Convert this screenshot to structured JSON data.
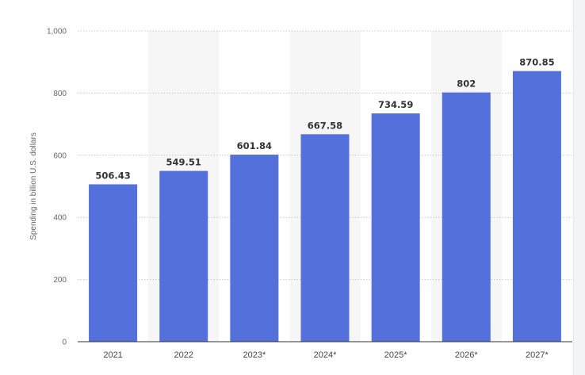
{
  "chart_data": {
    "type": "bar",
    "categories": [
      "2021",
      "2022",
      "2023*",
      "2024*",
      "2025*",
      "2026*",
      "2027*"
    ],
    "values": [
      506.43,
      549.51,
      601.84,
      667.58,
      734.59,
      802,
      870.85
    ],
    "value_labels": [
      "506.43",
      "549.51",
      "601.84",
      "667.58",
      "734.59",
      "802",
      "870.85"
    ],
    "title": "",
    "xlabel": "",
    "ylabel": "Spending in billion U.S. dollars",
    "ylim": [
      0,
      1000
    ],
    "yticks": [
      0,
      200,
      400,
      600,
      800,
      1000
    ],
    "ytick_labels": [
      "0",
      "200",
      "400",
      "600",
      "800",
      "1,000"
    ],
    "grid": true,
    "bar_color": "#5470db",
    "band_color": "#f6f6f6"
  }
}
